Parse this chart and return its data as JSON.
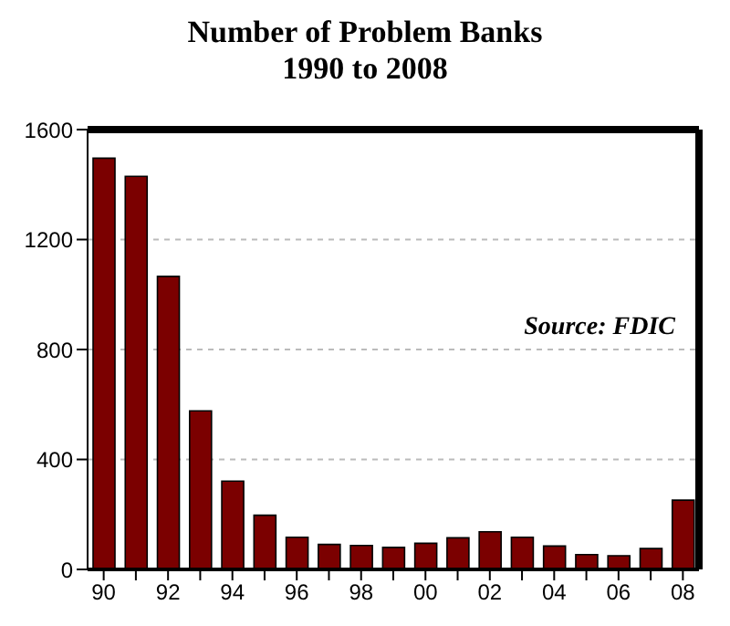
{
  "chart_data": {
    "type": "bar",
    "title": "Number of Problem Banks",
    "subtitle": "1990 to 2008",
    "categories": [
      "90",
      null,
      "92",
      null,
      "94",
      null,
      "96",
      null,
      "98",
      null,
      "00",
      null,
      "02",
      null,
      "04",
      null,
      "06",
      null,
      "08"
    ],
    "values": [
      1496,
      1430,
      1066,
      577,
      321,
      197,
      117,
      91,
      87,
      80,
      95,
      115,
      137,
      117,
      85,
      54,
      50,
      76,
      252
    ],
    "color": "#7b0000",
    "ylim": [
      0,
      1600
    ],
    "yticks": [
      0,
      400,
      800,
      1200,
      1600
    ],
    "grid": "y",
    "annotations": [
      "Source: FDIC"
    ]
  }
}
